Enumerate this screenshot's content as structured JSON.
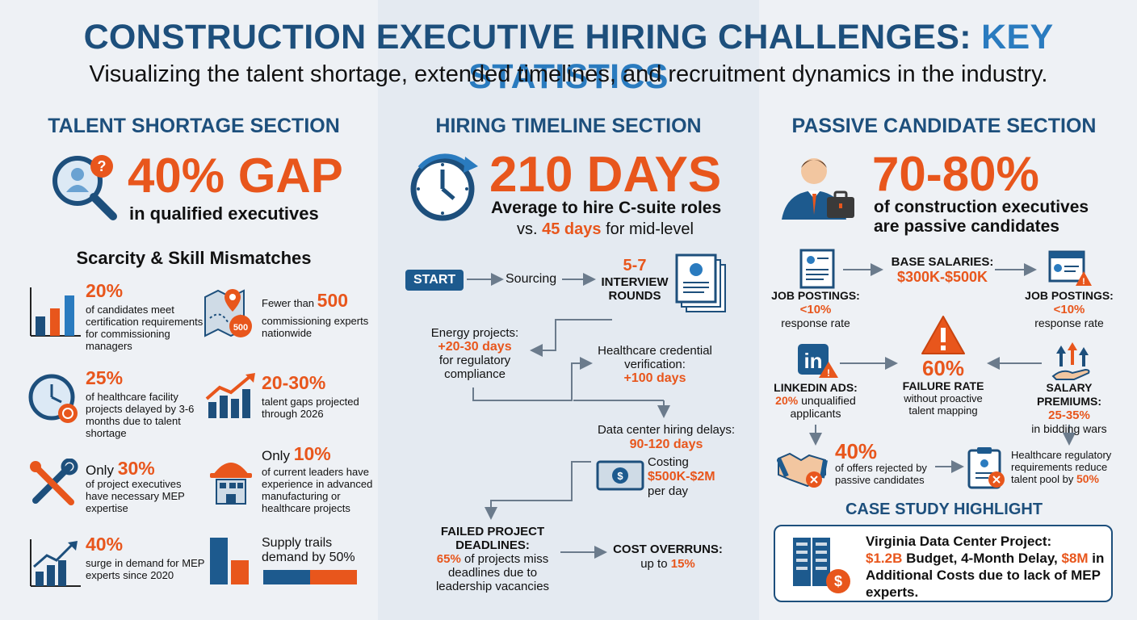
{
  "header": {
    "title_main": "CONSTRUCTION EXECUTIVE HIRING CHALLENGES:",
    "title_key": "KEY STATISTICS",
    "subtitle": "Visualizing the talent shortage, extended timelines, and recruitment dynamics in the industry."
  },
  "colors": {
    "navy": "#1d4f7c",
    "orange": "#e8561c",
    "blue": "#2a7bbf",
    "background": "#eef2f6"
  },
  "talent": {
    "heading": "TALENT SHORTAGE SECTION",
    "big": "40% GAP",
    "big_sub": "in qualified executives",
    "sub_heading": "Scarcity & Skill Mismatches",
    "stats": [
      {
        "pct": "20%",
        "text": "of candidates meet certification requirements for commissioning managers",
        "icon": "bar-chart-icon"
      },
      {
        "pre": "Fewer than",
        "pct": "500",
        "text": "commissioning experts nationwide",
        "icon": "map-pin-icon",
        "badge": "500"
      },
      {
        "pct": "25%",
        "text": "of healthcare facility projects delayed by 3-6 months due to talent shortage",
        "icon": "clock-icon"
      },
      {
        "pct": "20-30%",
        "text": "talent gaps projected through 2026",
        "icon": "trend-chart-icon"
      },
      {
        "pre": "Only",
        "pct": "30%",
        "text": "of project executives have necessary MEP expertise",
        "icon": "tools-icon"
      },
      {
        "pre": "Only",
        "pct": "10%",
        "text": "of current leaders have experience in advanced manufacturing or healthcare projects",
        "icon": "hardhat-building-icon"
      },
      {
        "pct": "40%",
        "text": "surge in demand for MEP experts since 2020",
        "icon": "growth-chart-icon"
      },
      {
        "text": "Supply trails demand by 50%",
        "icon": "supply-demand-chart-icon"
      }
    ]
  },
  "timeline": {
    "heading": "HIRING TIMELINE SECTION",
    "big": "210 DAYS",
    "big_sub": "Average to hire C-suite roles",
    "compare_pre": "vs.",
    "compare_days": "45 days",
    "compare_post": "for mid-level",
    "start": "START",
    "sourcing": "Sourcing",
    "interview_num": "5-7",
    "interview_label": "INTERVIEW ROUNDS",
    "energy_label": "Energy projects:",
    "energy_days": "+20-30 days",
    "energy_post": "for regulatory compliance",
    "health_label": "Healthcare credential verification:",
    "health_days": "+100 days",
    "datacenter_label": "Data center hiring delays:",
    "datacenter_days": "90-120 days",
    "costing_label": "Costing",
    "costing_value": "$500K-$2M",
    "costing_post": "per day",
    "failed_label": "FAILED PROJECT DEADLINES:",
    "failed_pct": "65%",
    "failed_post": "of projects miss deadlines due to leadership vacancies",
    "overrun_label": "COST OVERRUNS:",
    "overrun_pre": "up to",
    "overrun_pct": "15%"
  },
  "passive": {
    "heading": "PASSIVE CANDIDATE SECTION",
    "big": "70-80%",
    "big_sub1": "of construction executives",
    "big_sub2": "are passive candidates",
    "job1_label": "JOB POSTINGS:",
    "job1_pct": "<10%",
    "job1_post": "response rate",
    "base_label": "BASE SALARIES:",
    "base_value": "$300K-$500K",
    "job2_label": "JOB POSTINGS:",
    "job2_pct": "<10%",
    "job2_post": "response rate",
    "linkedin_label": "LINKEDIN ADS:",
    "linkedin_pct": "20%",
    "linkedin_post": "unqualified applicants",
    "failure_pct": "60%",
    "failure_label": "FAILURE RATE",
    "failure_post": "without proactive talent mapping",
    "premium_label": "SALARY PREMIUMS:",
    "premium_pct": "25-35%",
    "premium_post": "in bidding wars",
    "offers_pct": "40%",
    "offers_post": "of offers rejected by passive candidates",
    "reg_text": "Healthcare regulatory requirements reduce talent pool by",
    "reg_pct": "50%",
    "case_heading": "CASE STUDY HIGHLIGHT",
    "case_title": "Virginia Data Center Project:",
    "case_budget": "$1.2B",
    "case_budget_post": "Budget, 4-Month Delay,",
    "case_cost": "$8M",
    "case_post": "in Additional Costs due to lack of MEP experts.",
    "linkedin_logo": "in"
  }
}
